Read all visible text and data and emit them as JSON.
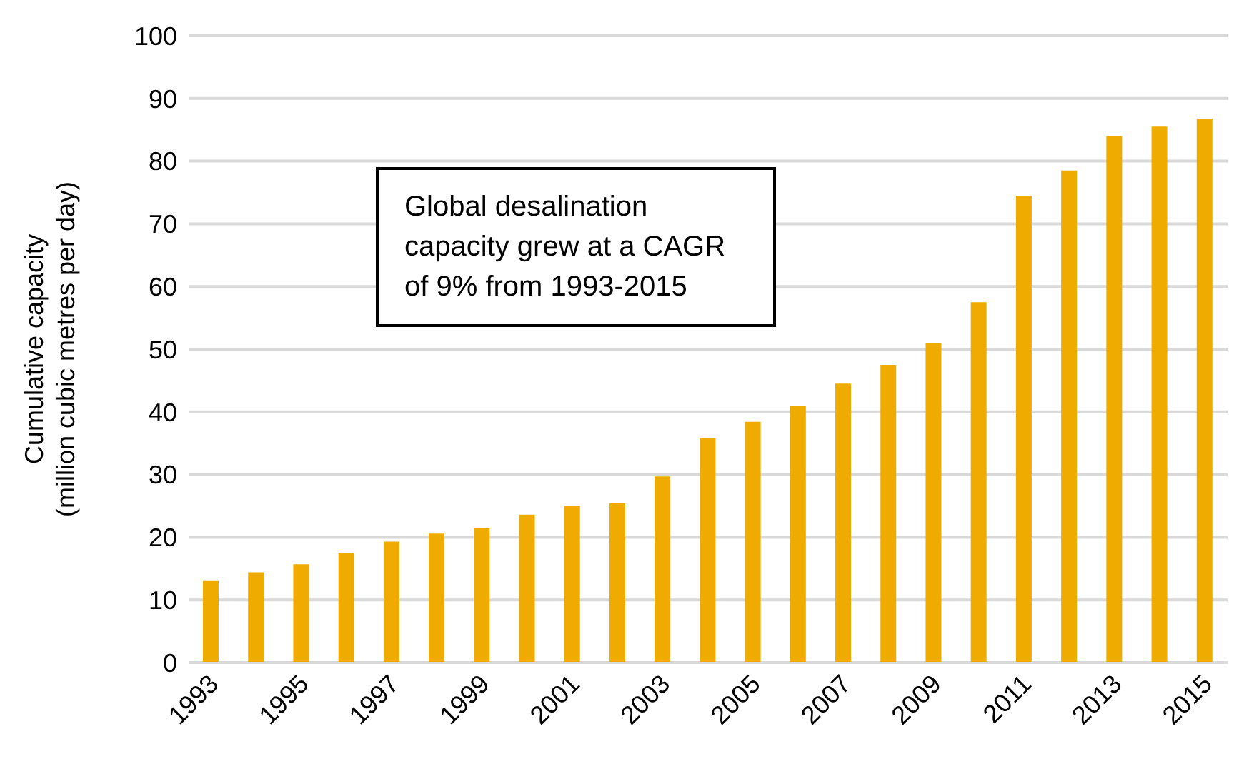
{
  "chart_data": {
    "type": "bar",
    "ylabel": "Cumulative capacity\n(million cubic metres per day)",
    "categories": [
      "1993",
      null,
      "1995",
      null,
      "1997",
      null,
      "1999",
      null,
      "2001",
      null,
      "2003",
      null,
      "2005",
      null,
      "2007",
      null,
      "2009",
      null,
      "2011",
      null,
      "2013",
      null,
      "2015"
    ],
    "values": [
      13,
      14.4,
      15.7,
      17.5,
      19.3,
      20.6,
      21.4,
      23.6,
      25,
      25.4,
      29.7,
      35.8,
      38.4,
      41,
      44.5,
      47.5,
      51,
      57.5,
      74.5,
      78.5,
      84,
      85.5,
      86.8
    ],
    "color": "#f0ab00",
    "ylim": [
      0,
      100
    ],
    "yticks": [
      0,
      10,
      20,
      30,
      40,
      50,
      60,
      70,
      80,
      90,
      100
    ],
    "grid": "y",
    "annotations": [
      "Global desalination capacity grew at a CAGR of 9% from 1993-2015"
    ]
  }
}
